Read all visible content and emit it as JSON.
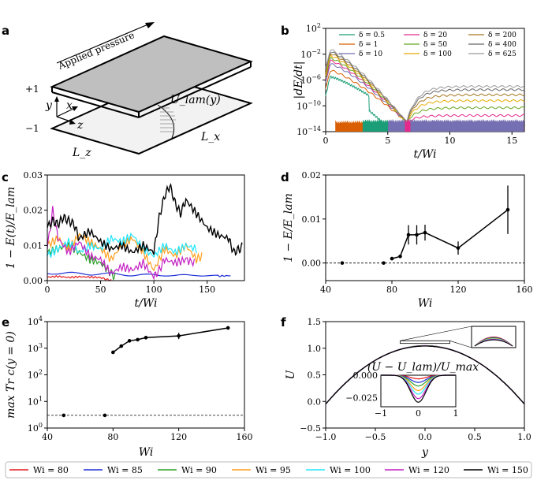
{
  "panel_labels": [
    "a",
    "b",
    "c",
    "d",
    "e",
    "f"
  ],
  "schematic": {
    "applied_pressure": "Applied pressure",
    "y_plus": "+1",
    "y_minus": "−1",
    "axis_y": "y",
    "axis_x": "x",
    "axis_z": "z",
    "u_lam": "U_lam(y)",
    "Lx": "L_x",
    "Lz": "L_z"
  },
  "colors": {
    "wi80": "#e41a1c",
    "wi85": "#1f2fd6",
    "wi90": "#2ca02c",
    "wi95": "#ff9f1c",
    "wi100": "#21e5ff",
    "wi120": "#c31fc3",
    "wi150": "#000000"
  },
  "bottom_legend": [
    {
      "label": "Wi = 80",
      "color": "#e41a1c"
    },
    {
      "label": "Wi = 85",
      "color": "#1f2fd6"
    },
    {
      "label": "Wi = 90",
      "color": "#2ca02c"
    },
    {
      "label": "Wi = 95",
      "color": "#ff9f1c"
    },
    {
      "label": "Wi = 100",
      "color": "#21e5ff"
    },
    {
      "label": "Wi = 120",
      "color": "#c31fc3"
    },
    {
      "label": "Wi = 150",
      "color": "#000000"
    }
  ],
  "chart_data": [
    {
      "id": "b",
      "type": "line",
      "xlabel": "t/Wi",
      "ylabel": "|dE/dt|",
      "yscale": "log",
      "xlim": [
        0,
        16
      ],
      "ylim_exp": [
        -14,
        2
      ],
      "xticks": [
        "0",
        "5",
        "10",
        "15"
      ],
      "yticks": [
        "10^2",
        "10^-2",
        "10^-6",
        "10^-10",
        "10^-14"
      ],
      "series": [
        {
          "name": "δ = 0.5",
          "color": "#1b9e77",
          "start_exp": -5.5,
          "end_exp": -10,
          "end_t": 4.8
        },
        {
          "name": "δ = 1",
          "color": "#d95f02",
          "start_exp": -4.5,
          "end_exp": -13.5,
          "end_t": 16
        },
        {
          "name": "δ = 10",
          "color": "#7570b3",
          "start_exp": -3.5,
          "end_exp": -12.5,
          "end_t": 16
        },
        {
          "name": "δ = 20",
          "color": "#e7298a",
          "start_exp": -3,
          "end_exp": -11.5,
          "end_t": 16
        },
        {
          "name": "δ = 50",
          "color": "#66a61e",
          "start_exp": -2.6,
          "end_exp": -10.3,
          "end_t": 16
        },
        {
          "name": "δ = 100",
          "color": "#e6ab02",
          "start_exp": -2.2,
          "end_exp": -9.2,
          "end_t": 16
        },
        {
          "name": "δ = 200",
          "color": "#a6761d",
          "start_exp": -1.9,
          "end_exp": -8.3,
          "end_t": 16
        },
        {
          "name": "δ = 400",
          "color": "#666666",
          "start_exp": -1.6,
          "end_exp": -7.5,
          "end_t": 16
        },
        {
          "name": "δ = 625",
          "color": "#999999",
          "start_exp": -1.3,
          "end_exp": -7.0,
          "end_t": 16
        }
      ]
    },
    {
      "id": "c",
      "type": "line",
      "xlabel": "t/Wi",
      "ylabel": "1 − E(t)/E_lam",
      "xlim": [
        0,
        185
      ],
      "ylim": [
        0,
        0.03
      ],
      "xticks": [
        0,
        50,
        100,
        150
      ],
      "yticks": [
        0.0,
        0.01,
        0.02,
        0.03
      ],
      "yticklabels": [
        "0.00",
        "0.01",
        "0.02",
        "0.03"
      ],
      "series": [
        {
          "name": "Wi = 80",
          "color": "#e41a1c",
          "x": [
            0,
            10,
            20,
            30,
            40,
            50,
            55,
            60
          ],
          "y": [
            0.001,
            0.0012,
            0.0009,
            0.0011,
            0.001,
            0.0009,
            0.0004,
            0.0001
          ]
        },
        {
          "name": "Wi = 85",
          "color": "#1f2fd6",
          "x": [
            0,
            20,
            40,
            60,
            80,
            100,
            120,
            140,
            160,
            172
          ],
          "y": [
            0.002,
            0.0022,
            0.0018,
            0.002,
            0.0015,
            0.0017,
            0.0014,
            0.0016,
            0.0013,
            0.0014
          ]
        },
        {
          "name": "Wi = 90",
          "color": "#2ca02c",
          "x": [
            0,
            10,
            20,
            30,
            40,
            50,
            60,
            64
          ],
          "y": [
            0.008,
            0.009,
            0.01,
            0.008,
            0.006,
            0.005,
            0.002,
            0.001
          ]
        },
        {
          "name": "Wi = 95",
          "color": "#ff9f1c",
          "x": [
            0,
            10,
            20,
            30,
            40,
            50,
            60,
            70,
            80,
            90,
            100,
            110,
            120,
            130,
            140,
            145
          ],
          "y": [
            0.01,
            0.012,
            0.009,
            0.013,
            0.011,
            0.009,
            0.006,
            0.01,
            0.012,
            0.008,
            0.003,
            0.009,
            0.007,
            0.01,
            0.006,
            0.007
          ]
        },
        {
          "name": "Wi = 100",
          "color": "#21e5ff",
          "x": [
            0,
            10,
            20,
            30,
            40,
            50,
            60,
            70,
            80,
            90,
            100,
            110,
            120,
            130,
            140
          ],
          "y": [
            0.007,
            0.009,
            0.011,
            0.008,
            0.01,
            0.009,
            0.012,
            0.011,
            0.013,
            0.009,
            0.007,
            0.01,
            0.008,
            0.01,
            0.009
          ]
        },
        {
          "name": "Wi = 120",
          "color": "#c31fc3",
          "x": [
            0,
            5,
            10,
            20,
            30,
            40,
            50,
            60,
            70,
            80,
            90,
            100,
            105,
            110,
            120,
            130,
            138
          ],
          "y": [
            0.009,
            0.02,
            0.012,
            0.008,
            0.011,
            0.007,
            0.006,
            0.002,
            0.004,
            0.003,
            0.005,
            0.001,
            0.003,
            0.006,
            0.005,
            0.006,
            0.005
          ]
        },
        {
          "name": "Wi = 150",
          "color": "#000000",
          "x": [
            0,
            5,
            10,
            15,
            20,
            25,
            30,
            40,
            50,
            60,
            70,
            80,
            90,
            100,
            105,
            110,
            115,
            120,
            125,
            130,
            140,
            150,
            160,
            170,
            175,
            180,
            183
          ],
          "y": [
            0.015,
            0.017,
            0.016,
            0.018,
            0.017,
            0.016,
            0.012,
            0.014,
            0.011,
            0.009,
            0.01,
            0.008,
            0.01,
            0.008,
            0.018,
            0.024,
            0.027,
            0.022,
            0.019,
            0.023,
            0.019,
            0.015,
            0.013,
            0.012,
            0.008,
            0.009,
            0.0095
          ]
        }
      ]
    },
    {
      "id": "d",
      "type": "scatter",
      "xlabel": "Wi",
      "ylabel": "1 − E/E_lam",
      "xlim": [
        40,
        160
      ],
      "ylim": [
        -0.004,
        0.02
      ],
      "xticks": [
        40,
        80,
        120,
        160
      ],
      "yticks": [
        0.0,
        0.01,
        0.02
      ],
      "yticklabels": [
        "0.00",
        "0.01",
        "0.02"
      ],
      "dashed_reference": 0.0,
      "points": [
        {
          "x": 50,
          "y": 0.0,
          "err": 0
        },
        {
          "x": 75,
          "y": 0.0,
          "err": 0
        },
        {
          "x": 80,
          "y": 0.001,
          "err": 0
        },
        {
          "x": 85,
          "y": 0.0015,
          "err": 0
        },
        {
          "x": 90,
          "y": 0.0064,
          "err": 0.0022
        },
        {
          "x": 95,
          "y": 0.0064,
          "err": 0.0022
        },
        {
          "x": 100,
          "y": 0.0069,
          "err": 0.0018
        },
        {
          "x": 120,
          "y": 0.0034,
          "err": 0.0015
        },
        {
          "x": 150,
          "y": 0.0121,
          "err": 0.0055
        }
      ]
    },
    {
      "id": "e",
      "type": "scatter",
      "xlabel": "Wi",
      "ylabel": "max Tr c(y = 0)",
      "yscale": "log",
      "xlim": [
        40,
        160
      ],
      "ylim_exp": [
        0,
        4
      ],
      "xticks": [
        40,
        80,
        120,
        160
      ],
      "yticks": [
        "10^0",
        "10^1",
        "10^2",
        "10^3",
        "10^4"
      ],
      "dashed_reference": 3,
      "points": [
        {
          "x": 50,
          "y": 3
        },
        {
          "x": 75,
          "y": 3
        },
        {
          "x": 80,
          "y": 700
        },
        {
          "x": 85,
          "y": 1200
        },
        {
          "x": 90,
          "y": 1900
        },
        {
          "x": 95,
          "y": 2100
        },
        {
          "x": 100,
          "y": 2500
        },
        {
          "x": 120,
          "y": 2900
        },
        {
          "x": 150,
          "y": 5800
        }
      ]
    },
    {
      "id": "f",
      "type": "line",
      "xlabel": "y",
      "ylabel": "U",
      "xlim": [
        -1,
        1
      ],
      "ylim": [
        -0.5,
        1.5
      ],
      "xticks": [
        -1.0,
        -0.5,
        0.0,
        0.5,
        1.0
      ],
      "xticklabels": [
        "−1.0",
        "−0.5",
        "0.0",
        "0.5",
        "1.0"
      ],
      "yticks": [
        -0.5,
        0.0,
        0.5,
        1.0,
        1.5
      ],
      "yticklabels": [
        "−0.5",
        "0.0",
        "0.5",
        "1.0",
        "1.5"
      ],
      "profile": "U = 1.1(1 − y^2) − 0.05",
      "inset_title": "(U − U_lam)/U_max",
      "inset": {
        "xlim": [
          -1,
          1
        ],
        "ylim": [
          -0.035,
          0.0
        ],
        "xticks": [
          "−1",
          "0",
          "1"
        ],
        "yticks": [
          "0.000",
          "−0.025"
        ],
        "series": [
          {
            "name": "Wi = 80",
            "color": "#e41a1c",
            "depth": 0.004
          },
          {
            "name": "Wi = 85",
            "color": "#1f2fd6",
            "depth": 0.008
          },
          {
            "name": "Wi = 90",
            "color": "#2ca02c",
            "depth": 0.012
          },
          {
            "name": "Wi = 95",
            "color": "#ff9f1c",
            "depth": 0.017
          },
          {
            "name": "Wi = 100",
            "color": "#21e5ff",
            "depth": 0.021
          },
          {
            "name": "Wi = 120",
            "color": "#c31fc3",
            "depth": 0.026
          },
          {
            "name": "Wi = 150",
            "color": "#000000",
            "depth": 0.03
          }
        ]
      }
    }
  ]
}
